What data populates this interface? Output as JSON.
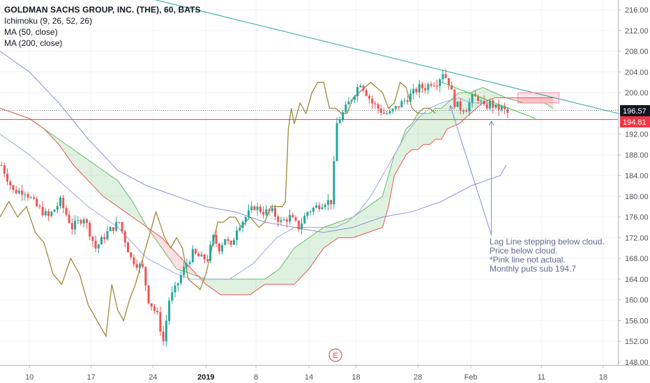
{
  "legend": {
    "title": "GOLDMAN SACHS GROUP, INC. (THE), 60, BATS",
    "ichimoku": "Ichimoku (9, 26, 52, 26)",
    "ma50": "MA (50, close)",
    "ma200": "MA (200, close)"
  },
  "annotation": {
    "lines": [
      "Lag Line stepping below cloud.",
      "Price below cloud.",
      "*Pink line not actual.",
      "Monthly puts sub 194.7"
    ]
  },
  "price_badges": {
    "last": "196.57",
    "support": "194.81",
    "last_color": "#131722",
    "support_color": "#f23645"
  },
  "event_marker": "E",
  "chart_data": {
    "type": "candlestick",
    "ylim": [
      147.5,
      217.5
    ],
    "y_ticks": [
      "216.00",
      "212.00",
      "208.00",
      "204.00",
      "200.00",
      "196.00",
      "192.00",
      "188.00",
      "184.00",
      "180.00",
      "176.00",
      "172.00",
      "168.00",
      "164.00",
      "160.00",
      "156.00",
      "152.00",
      "148.00"
    ],
    "x_ticks": [
      {
        "label": "10",
        "bar": 10
      },
      {
        "label": "17",
        "bar": 31
      },
      {
        "label": "24",
        "bar": 52
      },
      {
        "label": "2019",
        "bar": 70
      },
      {
        "label": "8",
        "bar": 87
      },
      {
        "label": "14",
        "bar": 105
      },
      {
        "label": "18",
        "bar": 121
      },
      {
        "label": "28",
        "bar": 142
      },
      {
        "label": "Feb",
        "bar": 160
      },
      {
        "label": "11",
        "bar": 184
      },
      {
        "label": "18",
        "bar": 205
      }
    ],
    "bars_total": 210,
    "price_path": [
      [
        0,
        186
      ],
      [
        4,
        181
      ],
      [
        8,
        181
      ],
      [
        12,
        178
      ],
      [
        16,
        176
      ],
      [
        20,
        179
      ],
      [
        24,
        174
      ],
      [
        28,
        176
      ],
      [
        32,
        170
      ],
      [
        36,
        173
      ],
      [
        40,
        175
      ],
      [
        44,
        168
      ],
      [
        48,
        166
      ],
      [
        50,
        160
      ],
      [
        53,
        157
      ],
      [
        55,
        152
      ],
      [
        57,
        160
      ],
      [
        59,
        162
      ],
      [
        62,
        166
      ],
      [
        65,
        169
      ],
      [
        68,
        168
      ],
      [
        70,
        168
      ],
      [
        72,
        172
      ],
      [
        74,
        170
      ],
      [
        76,
        172
      ],
      [
        78,
        170
      ],
      [
        80,
        174
      ],
      [
        83,
        176
      ],
      [
        86,
        178
      ],
      [
        89,
        177
      ],
      [
        92,
        177
      ],
      [
        95,
        175
      ],
      [
        98,
        176
      ],
      [
        101,
        174
      ],
      [
        104,
        177
      ],
      [
        107,
        178
      ],
      [
        110,
        179
      ],
      [
        112,
        179
      ],
      [
        113,
        186
      ],
      [
        114,
        194
      ],
      [
        116,
        196
      ],
      [
        118,
        198
      ],
      [
        120,
        200
      ],
      [
        122,
        202
      ],
      [
        124,
        200
      ],
      [
        126,
        198
      ],
      [
        128,
        197
      ],
      [
        130,
        196
      ],
      [
        132,
        196
      ],
      [
        134,
        197
      ],
      [
        136,
        198
      ],
      [
        138,
        199
      ],
      [
        140,
        200
      ],
      [
        142,
        201
      ],
      [
        144,
        201
      ],
      [
        146,
        202
      ],
      [
        148,
        202
      ],
      [
        150,
        204
      ],
      [
        152,
        202
      ],
      [
        154,
        198
      ],
      [
        156,
        197
      ],
      [
        158,
        197
      ],
      [
        160,
        199
      ],
      [
        162,
        199
      ],
      [
        164,
        197
      ],
      [
        166,
        198
      ],
      [
        168,
        197
      ],
      [
        170,
        197
      ],
      [
        172,
        196
      ]
    ],
    "lag_line": [
      [
        0,
        176
      ],
      [
        3,
        179
      ],
      [
        6,
        176
      ],
      [
        9,
        178
      ],
      [
        12,
        173
      ],
      [
        15,
        171
      ],
      [
        18,
        165
      ],
      [
        21,
        163
      ],
      [
        24,
        168
      ],
      [
        27,
        165
      ],
      [
        30,
        159
      ],
      [
        33,
        156
      ],
      [
        36,
        153
      ],
      [
        38,
        163
      ],
      [
        40,
        158
      ],
      [
        42,
        156
      ],
      [
        44,
        160
      ],
      [
        46,
        163
      ],
      [
        48,
        167
      ],
      [
        50,
        171
      ],
      [
        53,
        177
      ],
      [
        56,
        172
      ],
      [
        58,
        170
      ],
      [
        60,
        172
      ],
      [
        62,
        170
      ],
      [
        64,
        164
      ],
      [
        66,
        163
      ],
      [
        68,
        162
      ],
      [
        70,
        165
      ],
      [
        72,
        170
      ],
      [
        74,
        175
      ],
      [
        76,
        175
      ],
      [
        78,
        176
      ],
      [
        80,
        176
      ],
      [
        82,
        174
      ],
      [
        85,
        176
      ],
      [
        88,
        174
      ],
      [
        90,
        175
      ],
      [
        92,
        178
      ],
      [
        94,
        178
      ],
      [
        96,
        178
      ],
      [
        97,
        179
      ],
      [
        98,
        193
      ],
      [
        99,
        197
      ],
      [
        100,
        194
      ],
      [
        102,
        198
      ],
      [
        104,
        196
      ],
      [
        106,
        200
      ],
      [
        108,
        202
      ],
      [
        110,
        202
      ],
      [
        112,
        197
      ],
      [
        114,
        197
      ],
      [
        116,
        196
      ],
      [
        118,
        196
      ],
      [
        120,
        199
      ],
      [
        122,
        200
      ],
      [
        124,
        201
      ],
      [
        126,
        202
      ],
      [
        128,
        201
      ],
      [
        130,
        200
      ],
      [
        132,
        197
      ],
      [
        134,
        198
      ],
      [
        136,
        202
      ],
      [
        138,
        201
      ],
      [
        140,
        197
      ],
      [
        142,
        196
      ],
      [
        144,
        197
      ],
      [
        146,
        197
      ],
      [
        148,
        196
      ]
    ],
    "ma50": [
      [
        0,
        192
      ],
      [
        10,
        188
      ],
      [
        20,
        183
      ],
      [
        30,
        178
      ],
      [
        40,
        174
      ],
      [
        50,
        168
      ],
      [
        60,
        165
      ],
      [
        65,
        164
      ],
      [
        70,
        164
      ],
      [
        78,
        164
      ],
      [
        86,
        167
      ],
      [
        94,
        172
      ],
      [
        100,
        174
      ],
      [
        104,
        174
      ],
      [
        110,
        174
      ],
      [
        114,
        174
      ],
      [
        118,
        175
      ],
      [
        122,
        177
      ],
      [
        126,
        180
      ],
      [
        130,
        184
      ],
      [
        134,
        188
      ],
      [
        138,
        192
      ],
      [
        142,
        195
      ],
      [
        146,
        197
      ],
      [
        150,
        198
      ],
      [
        156,
        199
      ],
      [
        160,
        198
      ],
      [
        166,
        198
      ],
      [
        172,
        197
      ]
    ],
    "ma200": [
      [
        0,
        208
      ],
      [
        10,
        204
      ],
      [
        20,
        198
      ],
      [
        30,
        191
      ],
      [
        40,
        185
      ],
      [
        50,
        182
      ],
      [
        60,
        180
      ],
      [
        70,
        178
      ],
      [
        80,
        177
      ],
      [
        90,
        175
      ],
      [
        100,
        174
      ],
      [
        110,
        173
      ],
      [
        120,
        174
      ],
      [
        130,
        176
      ],
      [
        140,
        177
      ],
      [
        150,
        179
      ],
      [
        160,
        182
      ],
      [
        170,
        184
      ],
      [
        172,
        186
      ]
    ],
    "senkou_a": [
      [
        0,
        197
      ],
      [
        5,
        196
      ],
      [
        10,
        195
      ],
      [
        15,
        193
      ],
      [
        20,
        191
      ],
      [
        25,
        189
      ],
      [
        30,
        187
      ],
      [
        35,
        185
      ],
      [
        40,
        183
      ],
      [
        45,
        179
      ],
      [
        50,
        174
      ],
      [
        55,
        170
      ],
      [
        60,
        166
      ],
      [
        65,
        165
      ],
      [
        70,
        164
      ],
      [
        75,
        164
      ],
      [
        80,
        164
      ],
      [
        85,
        164
      ],
      [
        90,
        164
      ],
      [
        95,
        166
      ],
      [
        100,
        170
      ],
      [
        105,
        172
      ],
      [
        110,
        174
      ],
      [
        115,
        175
      ],
      [
        120,
        176
      ],
      [
        125,
        178
      ],
      [
        130,
        180
      ],
      [
        132,
        184
      ],
      [
        134,
        188
      ],
      [
        136,
        190
      ],
      [
        138,
        193
      ],
      [
        140,
        194
      ],
      [
        142,
        196
      ],
      [
        144,
        196
      ],
      [
        146,
        196
      ],
      [
        148,
        197
      ],
      [
        150,
        197
      ],
      [
        152,
        198
      ],
      [
        156,
        200
      ],
      [
        160,
        200
      ],
      [
        164,
        201
      ],
      [
        168,
        200
      ],
      [
        172,
        199
      ],
      [
        178,
        198
      ],
      [
        185,
        198
      ],
      [
        188,
        197
      ]
    ],
    "senkou_b": [
      [
        0,
        197
      ],
      [
        5,
        196
      ],
      [
        10,
        195
      ],
      [
        15,
        193
      ],
      [
        20,
        190
      ],
      [
        25,
        186
      ],
      [
        30,
        183
      ],
      [
        35,
        180
      ],
      [
        40,
        178
      ],
      [
        45,
        176
      ],
      [
        50,
        174
      ],
      [
        55,
        172
      ],
      [
        60,
        169
      ],
      [
        65,
        166
      ],
      [
        70,
        163
      ],
      [
        75,
        161
      ],
      [
        80,
        161
      ],
      [
        85,
        161
      ],
      [
        90,
        163
      ],
      [
        95,
        163
      ],
      [
        100,
        163
      ],
      [
        105,
        166
      ],
      [
        110,
        170
      ],
      [
        115,
        172
      ],
      [
        120,
        172
      ],
      [
        125,
        173
      ],
      [
        130,
        174
      ],
      [
        132,
        178
      ],
      [
        134,
        184
      ],
      [
        136,
        186
      ],
      [
        138,
        188
      ],
      [
        140,
        189
      ],
      [
        142,
        189
      ],
      [
        144,
        190
      ],
      [
        146,
        190
      ],
      [
        148,
        191
      ],
      [
        150,
        191
      ],
      [
        152,
        193
      ],
      [
        156,
        194
      ],
      [
        160,
        196
      ],
      [
        164,
        198
      ],
      [
        168,
        199
      ],
      [
        172,
        199
      ],
      [
        178,
        199
      ],
      [
        185,
        199
      ],
      [
        188,
        199
      ]
    ],
    "trendlines": [
      {
        "name": "descending-resistance",
        "from": [
          45,
          219
        ],
        "to": [
          210,
          196
        ],
        "color": "#26a69a"
      },
      {
        "name": "short-downtrend",
        "from": [
          150,
          202
        ],
        "to": [
          182,
          195
        ],
        "color": "#2ecc40"
      }
    ],
    "levels": [
      {
        "value": 194.81,
        "color": "#f23645"
      },
      {
        "value": 196.57,
        "color": "#787b86"
      }
    ],
    "arrows": [
      {
        "from": [
          167,
          172.5
        ],
        "to": [
          153,
          197.5
        ]
      },
      {
        "from": [
          167,
          172.5
        ],
        "to": [
          167,
          194.5
        ]
      }
    ],
    "pink_box": {
      "bars": [
        176,
        190
      ],
      "y": [
        198,
        200
      ]
    }
  }
}
